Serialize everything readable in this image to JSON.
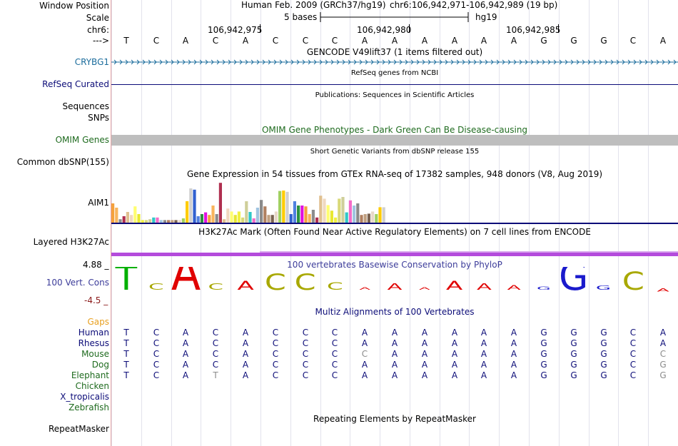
{
  "header": {
    "window_position_label": "Window Position",
    "scale_label": "Scale",
    "chrom_label": "chr6:",
    "strand_label": "--->",
    "assembly_text": "Human Feb. 2009 (GRCh37/hg19)",
    "position_text": "chr6:106,942,971-106,942,989 (19 bp)",
    "scale_text": "5 bases",
    "scale_db": "hg19",
    "ticks": [
      "106,942,975",
      "106,942,980",
      "106,942,985"
    ]
  },
  "sequence": [
    "T",
    "C",
    "A",
    "C",
    "A",
    "C",
    "C",
    "C",
    "A",
    "A",
    "A",
    "A",
    "A",
    "A",
    "G",
    "G",
    "G",
    "C",
    "A"
  ],
  "tracks": {
    "gencode_title": "GENCODE V49lift37 (1 items filtered out)",
    "gencode_gene": "CRYBG1",
    "refseq_title": "RefSeq genes from NCBI",
    "refseq_label": "RefSeq Curated",
    "publications_title": "Publications: Sequences in Scientific Articles",
    "sequences_label": "Sequences",
    "snps_label": "SNPs",
    "omim_title": "OMIM Gene Phenotypes - Dark Green Can Be Disease-causing",
    "omim_label": "OMIM Genes",
    "dbsnp_title": "Short Genetic Variants from dbSNP release 155",
    "dbsnp_label": "Common dbSNP(155)",
    "gtex_title": "Gene Expression in 54 tissues from GTEx RNA-seq of 17382 samples, 948 donors (V8, Aug 2019)",
    "gtex_gene": "AIM1",
    "h3k27ac_title": "H3K27Ac Mark (Often Found Near Active Regulatory Elements) on 7 cell lines from ENCODE",
    "h3k27ac_label": "Layered H3K27Ac",
    "phylop_title": "100 vertebrates Basewise Conservation by PhyloP",
    "phylop_label": "100 Vert. Cons",
    "phylop_max": "4.88 _",
    "phylop_min": "-4.5 _",
    "multiz_title": "Multiz Alignments of 100 Vertebrates",
    "gaps_label": "Gaps",
    "repeat_title": "Repeating Elements by RepeatMasker",
    "repeat_label": "RepeatMasker"
  },
  "colors": {
    "gencode": "#1b6c9c",
    "refseq": "#0c0c78",
    "omim_text": "#1f6b1f",
    "omim_bar": "#bebebe",
    "h3k27ac": "#b44bdc",
    "phylop_text": "#3c3c9a",
    "phylop_min": "#8b1a1a",
    "gaps": "#e8a020",
    "human": "#0c0c78",
    "green_species": "#1f6b1f",
    "base_A": "#e00000",
    "base_C": "#a8a800",
    "base_G": "#1a1acc",
    "base_T": "#00b000",
    "gtex_palette": [
      "#f4a13c",
      "#f8b45c",
      "#8c8c8c",
      "#b03050",
      "#e0c090",
      "#f0d8c0",
      "#fffe70",
      "#e8e830",
      "#f0f040",
      "#d8d878",
      "#cfcf9a",
      "#30c8c8",
      "#f36cc8",
      "#a0c4e0",
      "#8a8a8a",
      "#b08060",
      "#c0a080",
      "#7a6250",
      "#e8d8c8",
      "#a0d060",
      "#ffcc00",
      "#d0d0d0",
      "#3060d0",
      "#5080e0",
      "#2c9040",
      "#e010e0"
    ]
  },
  "species": [
    {
      "name": "Human",
      "bases": [
        "T",
        "C",
        "A",
        "C",
        "A",
        "C",
        "C",
        "C",
        "A",
        "A",
        "A",
        "A",
        "A",
        "A",
        "G",
        "G",
        "G",
        "C",
        "A"
      ],
      "diff": []
    },
    {
      "name": "Rhesus",
      "bases": [
        "T",
        "C",
        "A",
        "C",
        "A",
        "C",
        "C",
        "C",
        "A",
        "A",
        "A",
        "A",
        "A",
        "A",
        "G",
        "G",
        "G",
        "C",
        "A"
      ],
      "diff": []
    },
    {
      "name": "Mouse",
      "bases": [
        "T",
        "C",
        "A",
        "C",
        "A",
        "C",
        "C",
        "C",
        "C",
        "A",
        "A",
        "A",
        "A",
        "A",
        "G",
        "G",
        "G",
        "C",
        "C"
      ],
      "diff": [
        8,
        18
      ]
    },
    {
      "name": "Dog",
      "bases": [
        "T",
        "C",
        "A",
        "C",
        "A",
        "C",
        "C",
        "C",
        "A",
        "A",
        "A",
        "A",
        "A",
        "A",
        "G",
        "G",
        "G",
        "C",
        "G"
      ],
      "diff": [
        18
      ]
    },
    {
      "name": "Elephant",
      "bases": [
        "T",
        "C",
        "A",
        "T",
        "A",
        "C",
        "C",
        "C",
        "A",
        "A",
        "A",
        "A",
        "A",
        "A",
        "G",
        "G",
        "G",
        "C",
        "G"
      ],
      "diff": [
        3,
        18
      ]
    },
    {
      "name": "Chicken",
      "bases": [],
      "diff": []
    },
    {
      "name": "X_tropicalis",
      "bases": [],
      "diff": []
    },
    {
      "name": "Zebrafish",
      "bases": [],
      "diff": []
    }
  ],
  "phylop_logo": [
    {
      "b": "T",
      "s": 1.7
    },
    {
      "b": "C",
      "s": 0.6
    },
    {
      "b": "A",
      "s": 2.3
    },
    {
      "b": "C",
      "s": 0.6
    },
    {
      "b": "A",
      "s": 0.8
    },
    {
      "b": "C",
      "s": 1.3
    },
    {
      "b": "C",
      "s": 1.3
    },
    {
      "b": "C",
      "s": 0.7
    },
    {
      "b": "A",
      "s": 0.15
    },
    {
      "b": "A",
      "s": 0.6
    },
    {
      "b": "A",
      "s": 0.15
    },
    {
      "b": "A",
      "s": 0.8
    },
    {
      "b": "A",
      "s": 0.6
    },
    {
      "b": "A",
      "s": 0.45
    },
    {
      "b": "G",
      "s": 0.3
    },
    {
      "b": "G",
      "s": 1.9
    },
    {
      "b": "G",
      "s": 0.4
    },
    {
      "b": "C",
      "s": 1.4
    },
    {
      "b": "A",
      "s": -0.3
    }
  ],
  "gtex_values": [
    45,
    35,
    8,
    15,
    25,
    18,
    38,
    20,
    6,
    6,
    8,
    12,
    12,
    6,
    6,
    6,
    6,
    6,
    6,
    10,
    50,
    80,
    77,
    15,
    20,
    24,
    18,
    40,
    20,
    93,
    8,
    33,
    26,
    18,
    26,
    12,
    50,
    25,
    10,
    35,
    53,
    38,
    18,
    18,
    26,
    74,
    75,
    72,
    20,
    50,
    40,
    40,
    38,
    20,
    30,
    12,
    63,
    56,
    41,
    28,
    12,
    56,
    60,
    24,
    52,
    40,
    45,
    18,
    20,
    21,
    26,
    20,
    36,
    36
  ]
}
